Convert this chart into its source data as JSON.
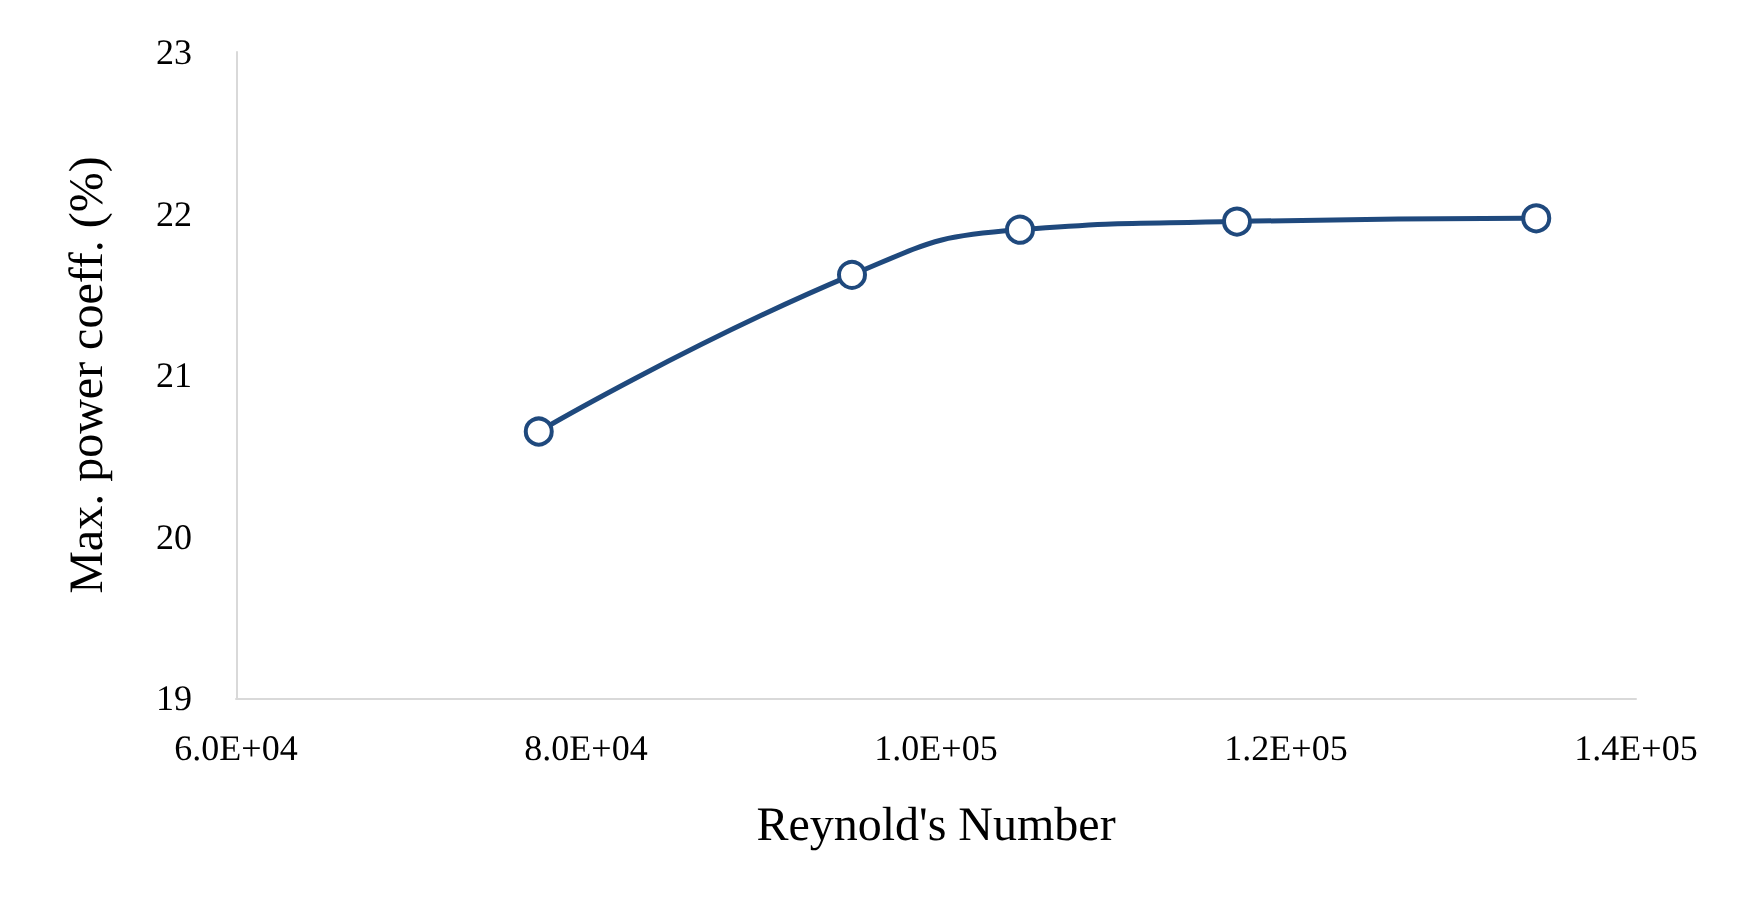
{
  "chart_data": {
    "type": "line",
    "xlabel": "Reynold's Number",
    "ylabel": "Max. power coeff. (%)",
    "x": [
      77300,
      95200,
      104800,
      117200,
      134300
    ],
    "series": [
      {
        "color": "#1f497d",
        "values": [
          20.65,
          21.62,
          21.9,
          21.95,
          21.97
        ]
      }
    ],
    "xlim": [
      60000,
      140000
    ],
    "xticks": [
      {
        "value": 60000,
        "label": "6.0E+04"
      },
      {
        "value": 80000,
        "label": "8.0E+04"
      },
      {
        "value": 100000,
        "label": "1.0E+05"
      },
      {
        "value": 120000,
        "label": "1.2E+05"
      },
      {
        "value": 140000,
        "label": "1.4E+05"
      }
    ],
    "ylim": [
      19,
      23
    ],
    "yticks": [
      19,
      20,
      21,
      22,
      23
    ],
    "grid": false,
    "marker": "circle",
    "line_style": "solid"
  }
}
